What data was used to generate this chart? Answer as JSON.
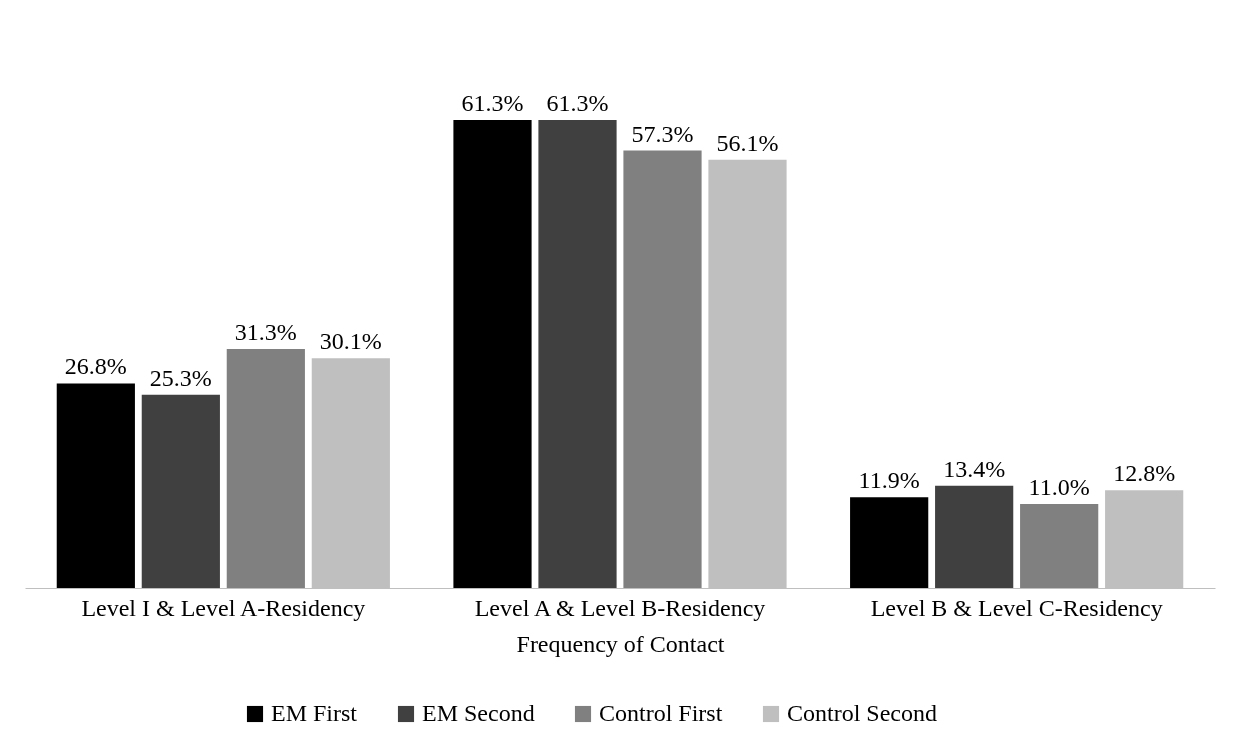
{
  "chart_data": {
    "type": "bar",
    "xlabel": "Frequency of Contact",
    "categories": [
      "Level I & Level A-Residency",
      "Level A & Level B-Residency",
      "Level B & Level C-Residency"
    ],
    "series": [
      {
        "name": "EM First",
        "color": "#000000",
        "values": [
          26.8,
          61.3,
          11.9
        ],
        "value_labels": [
          "26.8%",
          "61.3%",
          "11.9%"
        ]
      },
      {
        "name": "EM Second",
        "color": "#404040",
        "values": [
          25.3,
          61.3,
          13.4
        ],
        "value_labels": [
          "25.3%",
          "61.3%",
          "13.4%"
        ]
      },
      {
        "name": "Control First",
        "color": "#808080",
        "values": [
          31.3,
          57.3,
          11.0
        ],
        "value_labels": [
          "31.3%",
          "57.3%",
          "11.0%"
        ]
      },
      {
        "name": "Control Second",
        "color": "#bfbfbf",
        "values": [
          30.1,
          56.1,
          12.8
        ],
        "value_labels": [
          "30.1%",
          "56.1%",
          "12.8%"
        ]
      }
    ],
    "legend": "bottom"
  }
}
